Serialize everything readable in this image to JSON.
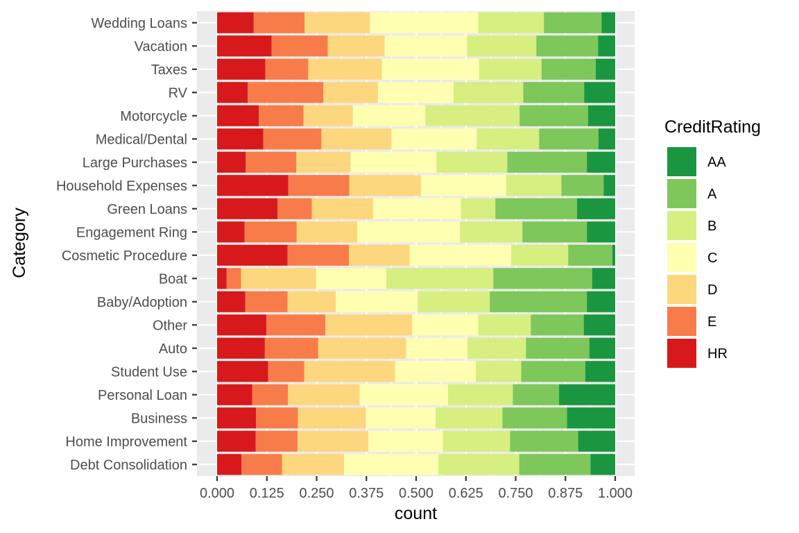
{
  "chart_data": {
    "type": "bar",
    "orientation": "horizontal",
    "stacked": "proportional",
    "xlabel": "count",
    "ylabel": "Category",
    "xlim": [
      0,
      1
    ],
    "x_ticks": [
      "0.000",
      "0.125",
      "0.250",
      "0.375",
      "0.500",
      "0.625",
      "0.750",
      "0.875",
      "1.000"
    ],
    "x_tick_values": [
      0,
      0.125,
      0.25,
      0.375,
      0.5,
      0.625,
      0.75,
      0.875,
      1.0
    ],
    "grid": true,
    "legend_title": "CreditRating",
    "legend_position": "right",
    "legend_order": [
      "AA",
      "A",
      "B",
      "C",
      "D",
      "E",
      "HR"
    ],
    "colors": {
      "HR": "#d7191c",
      "E": "#f87c4a",
      "D": "#fdd77e",
      "C": "#ffffb2",
      "B": "#d6ef80",
      "A": "#7ec75a",
      "AA": "#1a9641"
    },
    "categories": [
      "Wedding Loans",
      "Vacation",
      "Taxes",
      "RV",
      "Motorcycle",
      "Medical/Dental",
      "Large Purchases",
      "Household Expenses",
      "Green Loans",
      "Engagement Ring",
      "Cosmetic Procedure",
      "Boat",
      "Baby/Adoption",
      "Other",
      "Auto",
      "Student Use",
      "Personal Loan",
      "Business",
      "Home Improvement",
      "Debt Consolidation"
    ],
    "series": [
      {
        "name": "HR",
        "values": [
          0.092,
          0.137,
          0.121,
          0.077,
          0.105,
          0.116,
          0.072,
          0.179,
          0.152,
          0.069,
          0.177,
          0.024,
          0.071,
          0.124,
          0.12,
          0.128,
          0.088,
          0.098,
          0.097,
          0.061
        ]
      },
      {
        "name": "E",
        "values": [
          0.128,
          0.141,
          0.108,
          0.19,
          0.112,
          0.146,
          0.127,
          0.153,
          0.086,
          0.131,
          0.154,
          0.036,
          0.106,
          0.148,
          0.134,
          0.091,
          0.09,
          0.105,
          0.105,
          0.102
        ]
      },
      {
        "name": "D",
        "values": [
          0.164,
          0.143,
          0.185,
          0.137,
          0.124,
          0.176,
          0.136,
          0.18,
          0.154,
          0.152,
          0.153,
          0.189,
          0.121,
          0.218,
          0.221,
          0.228,
          0.18,
          0.171,
          0.178,
          0.156
        ]
      },
      {
        "name": "C",
        "values": [
          0.272,
          0.207,
          0.244,
          0.19,
          0.182,
          0.214,
          0.216,
          0.214,
          0.221,
          0.258,
          0.255,
          0.176,
          0.206,
          0.166,
          0.154,
          0.203,
          0.222,
          0.175,
          0.187,
          0.237
        ]
      },
      {
        "name": "B",
        "values": [
          0.165,
          0.174,
          0.157,
          0.175,
          0.237,
          0.157,
          0.178,
          0.139,
          0.086,
          0.157,
          0.143,
          0.269,
          0.181,
          0.132,
          0.147,
          0.114,
          0.163,
          0.168,
          0.169,
          0.203
        ]
      },
      {
        "name": "A",
        "values": [
          0.145,
          0.155,
          0.136,
          0.153,
          0.172,
          0.149,
          0.2,
          0.106,
          0.205,
          0.162,
          0.111,
          0.248,
          0.244,
          0.133,
          0.159,
          0.161,
          0.116,
          0.162,
          0.171,
          0.179
        ]
      },
      {
        "name": "AA",
        "values": [
          0.034,
          0.043,
          0.049,
          0.078,
          0.068,
          0.042,
          0.071,
          0.029,
          0.096,
          0.071,
          0.007,
          0.058,
          0.071,
          0.079,
          0.065,
          0.075,
          0.141,
          0.121,
          0.093,
          0.062
        ]
      }
    ]
  }
}
